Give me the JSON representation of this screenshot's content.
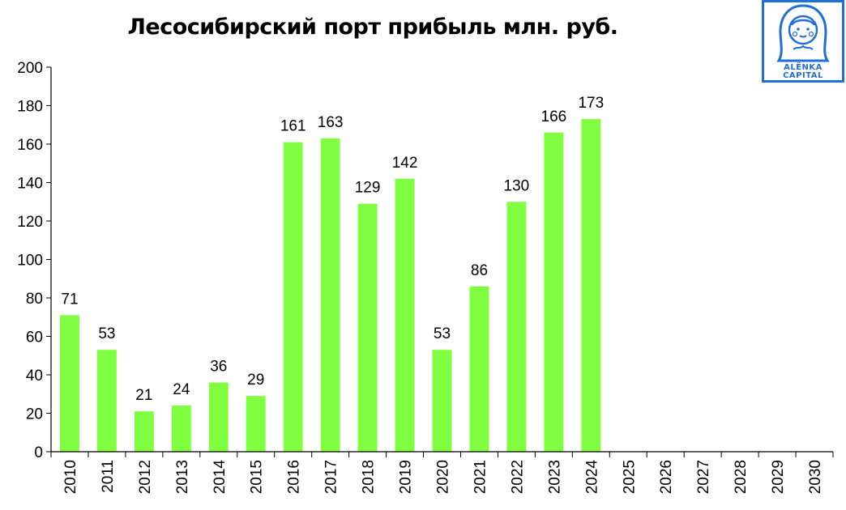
{
  "chart_data": {
    "type": "bar",
    "title": "Лесосибирский порт прибыль млн. руб.",
    "categories": [
      "2010",
      "2011",
      "2012",
      "2013",
      "2014",
      "2015",
      "2016",
      "2017",
      "2018",
      "2019",
      "2020",
      "2021",
      "2022",
      "2023",
      "2024",
      "2025",
      "2026",
      "2027",
      "2028",
      "2029",
      "2030"
    ],
    "values": [
      71,
      53,
      21,
      24,
      36,
      29,
      161,
      163,
      129,
      142,
      53,
      86,
      130,
      166,
      173,
      null,
      null,
      null,
      null,
      null,
      null
    ],
    "data_labels": [
      "71",
      "53",
      "21",
      "24",
      "36",
      "29",
      "161",
      "163",
      "129",
      "142",
      "53",
      "86",
      "130",
      "166",
      "173",
      "",
      "",
      "",
      "",
      "",
      ""
    ],
    "ylim": [
      0,
      200
    ],
    "yticks": [
      "0",
      "20",
      "40",
      "60",
      "80",
      "100",
      "120",
      "140",
      "160",
      "180",
      "200"
    ],
    "grid": false,
    "bar_color": "#80ff40"
  },
  "logo": {
    "line1": "ALЁNKA",
    "line2": "CAPITAL",
    "color": "#1f6fd6"
  }
}
